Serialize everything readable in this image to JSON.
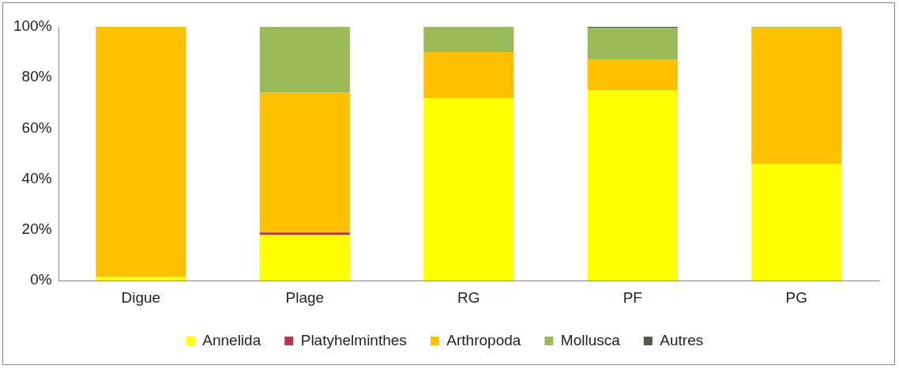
{
  "chart_data": {
    "type": "bar",
    "stacked": true,
    "categories": [
      "Digue",
      "Plage",
      "RG",
      "PF",
      "PG"
    ],
    "series": [
      {
        "name": "Annelida",
        "color": "#ffff00",
        "values": [
          1.5,
          18,
          72,
          75,
          46
        ]
      },
      {
        "name": "Platyhelminthes",
        "color": "#b0394f",
        "values": [
          0,
          1,
          0,
          0,
          0
        ]
      },
      {
        "name": "Arthropoda",
        "color": "#ffc000",
        "values": [
          98.5,
          55,
          18,
          12,
          53.5
        ]
      },
      {
        "name": "Mollusca",
        "color": "#9bbb59",
        "values": [
          0,
          26,
          10,
          12.5,
          0.5
        ]
      },
      {
        "name": "Autres",
        "color": "#4f5b46",
        "values": [
          0,
          0,
          0,
          0.5,
          0
        ]
      }
    ],
    "ylim": [
      0,
      100
    ],
    "yticks": [
      {
        "value": 0,
        "label": "0%"
      },
      {
        "value": 20,
        "label": "20%"
      },
      {
        "value": 40,
        "label": "40%"
      },
      {
        "value": 60,
        "label": "60%"
      },
      {
        "value": 80,
        "label": "80%"
      },
      {
        "value": 100,
        "label": "100%"
      }
    ],
    "grid": false,
    "legend": "bottom"
  }
}
